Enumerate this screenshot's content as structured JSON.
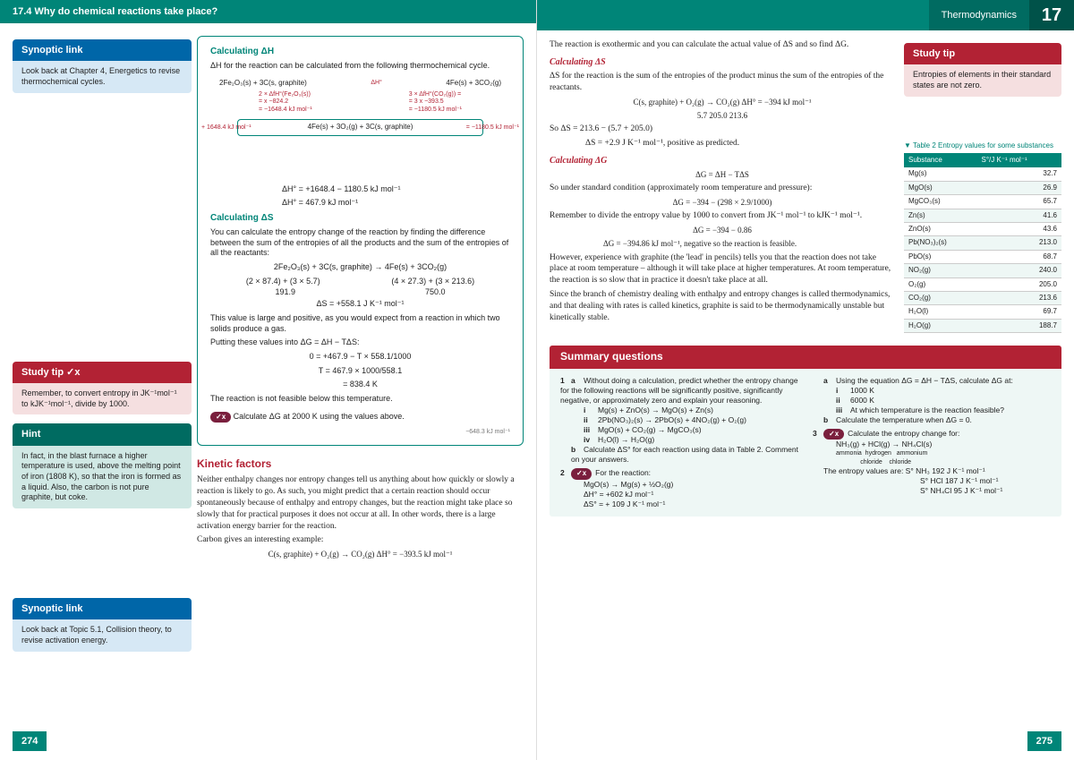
{
  "header": {
    "left_title": "17.4 Why do chemical reactions take place?",
    "right_label": "Thermodynamics",
    "chapter_number": "17"
  },
  "left_page": {
    "synoptic1": {
      "title": "Synoptic link",
      "body": "Look back at Chapter 4, Energetics to revise thermochemical cycles."
    },
    "studytip1": {
      "title": "Study tip ✓x",
      "body": "Remember, to convert entropy in JK⁻¹mol⁻¹ to kJK⁻¹mol⁻¹, divide by 1000."
    },
    "hint": {
      "title": "Hint",
      "body": "In fact, in the blast furnace a higher temperature is used, above the melting point of iron (1808 K), so that the iron is formed as a liquid. Also, the carbon is not pure graphite, but coke."
    },
    "synoptic2": {
      "title": "Synoptic link",
      "body": "Look back at Topic 5.1, Collision theory, to revise activation energy."
    },
    "worked": {
      "calc_dh_title": "Calculating ΔH",
      "calc_dh_intro": "ΔH for the reaction can be calculated from the following thermochemical cycle.",
      "cycle_eq_left": "2Fe₂O₃(s) + 3C(s, graphite)",
      "cycle_eq_right": "4Fe(s) + 3CO₂(g)",
      "cycle_dh_top": "ΔH°",
      "cycle_mid_left_1": "2 × ΔfH°(Fe₂O₃(s))",
      "cycle_mid_left_2": "= x −824.2",
      "cycle_mid_left_3": "= −1648.4 kJ mol⁻¹",
      "cycle_mid_right_1": "3 × ΔfH°(CO₂(g)) =",
      "cycle_mid_right_2": "= 3 x −393.5",
      "cycle_mid_right_3": "= −1180.5 kJ mol⁻¹",
      "cycle_bottom": "4Fe(s) + 3O₂(g) + 3C(s, graphite)",
      "cycle_left_val": "+ 1648.4 kJ mol⁻¹",
      "cycle_right_val": "= −1180.5 kJ mol⁻¹",
      "dh_calc1": "ΔH° = +1648.4 − 1180.5 kJ mol⁻¹",
      "dh_calc2": "ΔH° = 467.9 kJ mol⁻¹",
      "calc_ds_title": "Calculating ΔS",
      "calc_ds_intro": "You can calculate the entropy change of the reaction by finding the difference between the sum of the entropies of all the products and the sum of the entropies of all the reactants:",
      "ds_eq": "2Fe₂O₃(s) + 3C(s, graphite) → 4Fe(s) + 3CO₂(g)",
      "ds_row1_left": "(2 × 87.4) + (3 × 5.7)",
      "ds_row1_right": "(4 × 27.3) + (3 × 213.6)",
      "ds_row2_left": "191.9",
      "ds_row2_right": "750.0",
      "ds_result": "ΔS = +558.1 J K⁻¹ mol⁻¹",
      "ds_explain": "This value is large and positive, as you would expect from a reaction in which two solids produce a gas.",
      "dg_intro": "Putting these values into ΔG = ΔH − TΔS:",
      "dg_eq1": "0 = +467.9 − T × 558.1/1000",
      "dg_eq2": "T = 467.9 × 1000/558.1",
      "dg_eq3": "= 838.4 K",
      "dg_conclude": "The reaction is not feasible below this temperature.",
      "vr_prompt": "Calculate ΔG at 2000 K using the values above.",
      "vr_answer": "−648.3 kJ mol⁻¹"
    },
    "kinetic": {
      "title": "Kinetic factors",
      "p1": "Neither enthalpy changes nor entropy changes tell us anything about how quickly or slowly a reaction is likely to go. As such, you might predict that a certain reaction should occur spontaneously because of enthalpy and entropy changes, but the reaction might take place so slowly that for practical purposes it does not occur at all. In other words, there is a large activation energy barrier for the reaction.",
      "p2": "Carbon gives an interesting example:",
      "eq": "C(s, graphite) + O₂(g) → CO₂(g)      ΔH° = −393.5 kJ mol⁻¹"
    },
    "page_num": "274"
  },
  "right_page": {
    "intro1": "The reaction is exothermic and you can calculate the actual value of ΔS and so find ΔG.",
    "calc_ds_title": "Calculating ΔS",
    "calc_ds_p1": "ΔS for the reaction is the sum of the entropies of the product minus the sum of the entropies of the reactants.",
    "ds_eq1": "C(s, graphite) + O₂(g) → CO₂(g)      ΔH° = −394 kJ mol⁻¹",
    "ds_eq2": "5.7          205.0    213.6",
    "ds_eq3": "So      ΔS = 213.6 − (5.7 + 205.0)",
    "ds_eq4": "ΔS = +2.9 J K⁻¹ mol⁻¹, positive as predicted.",
    "calc_dg_title": "Calculating ΔG",
    "dg_eq1": "ΔG = ΔH − TΔS",
    "dg_p1": "So under standard condition (approximately room temperature and pressure):",
    "dg_eq2": "ΔG = −394 − (298 × 2.9/1000)",
    "dg_p2": "Remember to divide the entropy value by 1000 to convert from JK⁻¹ mol⁻¹ to kJK⁻¹ mol⁻¹.",
    "dg_eq3": "ΔG = −394 − 0.86",
    "dg_eq4": "ΔG = −394.86 kJ mol⁻¹, negative so the reaction is feasible.",
    "dg_p3": "However, experience with graphite (the 'lead' in pencils) tells you that the reaction does not take place at room temperature – although it will take place at higher temperatures. At room temperature, the reaction is so slow that in practice it doesn't take place at all.",
    "dg_p4": "Since the branch of chemistry dealing with enthalpy and entropy changes is called thermodynamics, and that dealing with rates is called kinetics, graphite is said to be thermodynamically unstable but kinetically stable.",
    "studytip_r": {
      "title": "Study tip",
      "body": "Entropies of elements in their standard states are not zero."
    },
    "table": {
      "caption": "▼ Table 2 Entropy values for some substances",
      "headers": [
        "Substance",
        "S°/J K⁻¹ mol⁻¹"
      ],
      "rows": [
        [
          "Mg(s)",
          "32.7"
        ],
        [
          "MgO(s)",
          "26.9"
        ],
        [
          "MgCO₃(s)",
          "65.7"
        ],
        [
          "Zn(s)",
          "41.6"
        ],
        [
          "ZnO(s)",
          "43.6"
        ],
        [
          "Pb(NO₃)₂(s)",
          "213.0"
        ],
        [
          "PbO(s)",
          "68.7"
        ],
        [
          "NO₂(g)",
          "240.0"
        ],
        [
          "O₂(g)",
          "205.0"
        ],
        [
          "CO₂(g)",
          "213.6"
        ],
        [
          "H₂O(l)",
          "69.7"
        ],
        [
          "H₂O(g)",
          "188.7"
        ]
      ]
    },
    "summary": {
      "title": "Summary questions",
      "q1a_intro": "Without doing a calculation, predict whether the entropy change for the following reactions will be significantly positive, significantly negative, or approximately zero and explain your reasoning.",
      "q1a_i": "Mg(s) + ZnO(s) → MgO(s) + Zn(s)",
      "q1a_ii": "2Pb(NO₃)₂(s) → 2PbO(s) + 4NO₂(g) + O₂(g)",
      "q1a_iii": "MgO(s) + CO₂(g) → MgCO₃(s)",
      "q1a_iv": "H₂O(l) → H₂O(g)",
      "q1b": "Calculate ΔS° for each reaction using data in Table 2. Comment on your answers.",
      "q2_intro": "For the reaction:",
      "q2_eq": "MgO(s) → Mg(s) + ½O₂(g)",
      "q2_dh": "ΔH° = +602 kJ mol⁻¹",
      "q2_ds": "ΔS° = + 109 J K⁻¹ mol⁻¹",
      "q_right_a": "Using the equation ΔG = ΔH − TΔS, calculate ΔG at:",
      "q_right_a_i": "1000 K",
      "q_right_a_ii": "6000 K",
      "q_right_a_iii": "At which temperature is the reaction feasible?",
      "q_right_b": "Calculate the temperature when ΔG = 0.",
      "q3_intro": "Calculate the entropy change for:",
      "q3_eq": "NH₃(g) + HCl(g) → NH₄Cl(s)",
      "q3_labels": "ammonia  hydrogen   ammonium\n              chloride    chloride",
      "q3_values": "The entropy values are:  S° NH₃    192 J K⁻¹ mol⁻¹",
      "q3_val2": "S° HCl    187 J K⁻¹ mol⁻¹",
      "q3_val3": "S° NH₄Cl  95 J K⁻¹ mol⁻¹"
    },
    "page_num": "275"
  },
  "colors": {
    "teal": "#008578",
    "teal_dark": "#006b61",
    "teal_darker": "#005249",
    "red": "#b22234",
    "blue": "#0066a8"
  }
}
